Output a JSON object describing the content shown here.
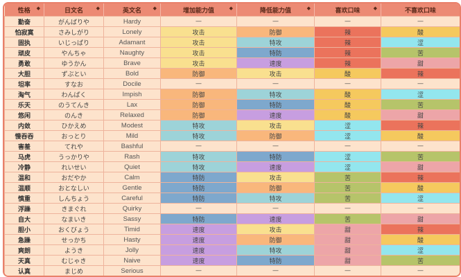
{
  "headers": [
    "性格",
    "日文名",
    "英文名",
    "增加能力值",
    "降低能力值",
    "喜欢口味",
    "不喜欢口味"
  ],
  "sortable": [
    true,
    true,
    true,
    true,
    true,
    true,
    true
  ],
  "colors": {
    "攻击": "#f9e08f",
    "防御": "#f9b77c",
    "特攻": "#9dd3d8",
    "特防": "#7ea8cd",
    "速度": "#c79ee0",
    "辣": "#eb735c",
    "酸": "#f5c95e",
    "涩": "#93e6ee",
    "苦": "#b6c46a",
    "甜": "#eda5a8",
    "—": "#fde3cc"
  },
  "rows": [
    [
      "勤奋",
      "がんばりや",
      "Hardy",
      "—",
      "—",
      "—",
      "—"
    ],
    [
      "怕寂寞",
      "さみしがり",
      "Lonely",
      "攻击",
      "防御",
      "辣",
      "酸"
    ],
    [
      "固执",
      "いじっぱり",
      "Adamant",
      "攻击",
      "特攻",
      "辣",
      "涩"
    ],
    [
      "顽皮",
      "やんちゃ",
      "Naughty",
      "攻击",
      "特防",
      "辣",
      "苦"
    ],
    [
      "勇敢",
      "ゆうかん",
      "Brave",
      "攻击",
      "速度",
      "辣",
      "甜"
    ],
    [
      "大胆",
      "ずぶとい",
      "Bold",
      "防御",
      "攻击",
      "酸",
      "辣"
    ],
    [
      "坦率",
      "すなお",
      "Docile",
      "—",
      "—",
      "—",
      "—"
    ],
    [
      "淘气",
      "わんぱく",
      "Impish",
      "防御",
      "特攻",
      "酸",
      "涩"
    ],
    [
      "乐天",
      "のうてんき",
      "Lax",
      "防御",
      "特防",
      "酸",
      "苦"
    ],
    [
      "悠闲",
      "のんき",
      "Relaxed",
      "防御",
      "速度",
      "酸",
      "甜"
    ],
    [
      "内敛",
      "ひかえめ",
      "Modest",
      "特攻",
      "攻击",
      "涩",
      "辣"
    ],
    [
      "慢吞吞",
      "おっとり",
      "Mild",
      "特攻",
      "防御",
      "涩",
      "酸"
    ],
    [
      "害羞",
      "てれや",
      "Bashful",
      "—",
      "—",
      "—",
      "—"
    ],
    [
      "马虎",
      "うっかりや",
      "Rash",
      "特攻",
      "特防",
      "涩",
      "苦"
    ],
    [
      "冷静",
      "れいせい",
      "Quiet",
      "特攻",
      "速度",
      "涩",
      "甜"
    ],
    [
      "温和",
      "おだやか",
      "Calm",
      "特防",
      "攻击",
      "苦",
      "辣"
    ],
    [
      "温顺",
      "おとなしい",
      "Gentle",
      "特防",
      "防御",
      "苦",
      "酸"
    ],
    [
      "慎重",
      "しんちょう",
      "Careful",
      "特防",
      "特攻",
      "苦",
      "涩"
    ],
    [
      "浮躁",
      "きまぐれ",
      "Quirky",
      "—",
      "—",
      "—",
      "—"
    ],
    [
      "自大",
      "なまいき",
      "Sassy",
      "特防",
      "速度",
      "苦",
      "甜"
    ],
    [
      "胆小",
      "おくびょう",
      "Timid",
      "速度",
      "攻击",
      "甜",
      "辣"
    ],
    [
      "急躁",
      "せっかち",
      "Hasty",
      "速度",
      "防御",
      "甜",
      "酸"
    ],
    [
      "爽朗",
      "ようき",
      "Jolly",
      "速度",
      "特攻",
      "甜",
      "涩"
    ],
    [
      "天真",
      "むじゃき",
      "Naive",
      "速度",
      "特防",
      "甜",
      "苦"
    ],
    [
      "认真",
      "まじめ",
      "Serious",
      "—",
      "—",
      "—",
      "—"
    ]
  ]
}
